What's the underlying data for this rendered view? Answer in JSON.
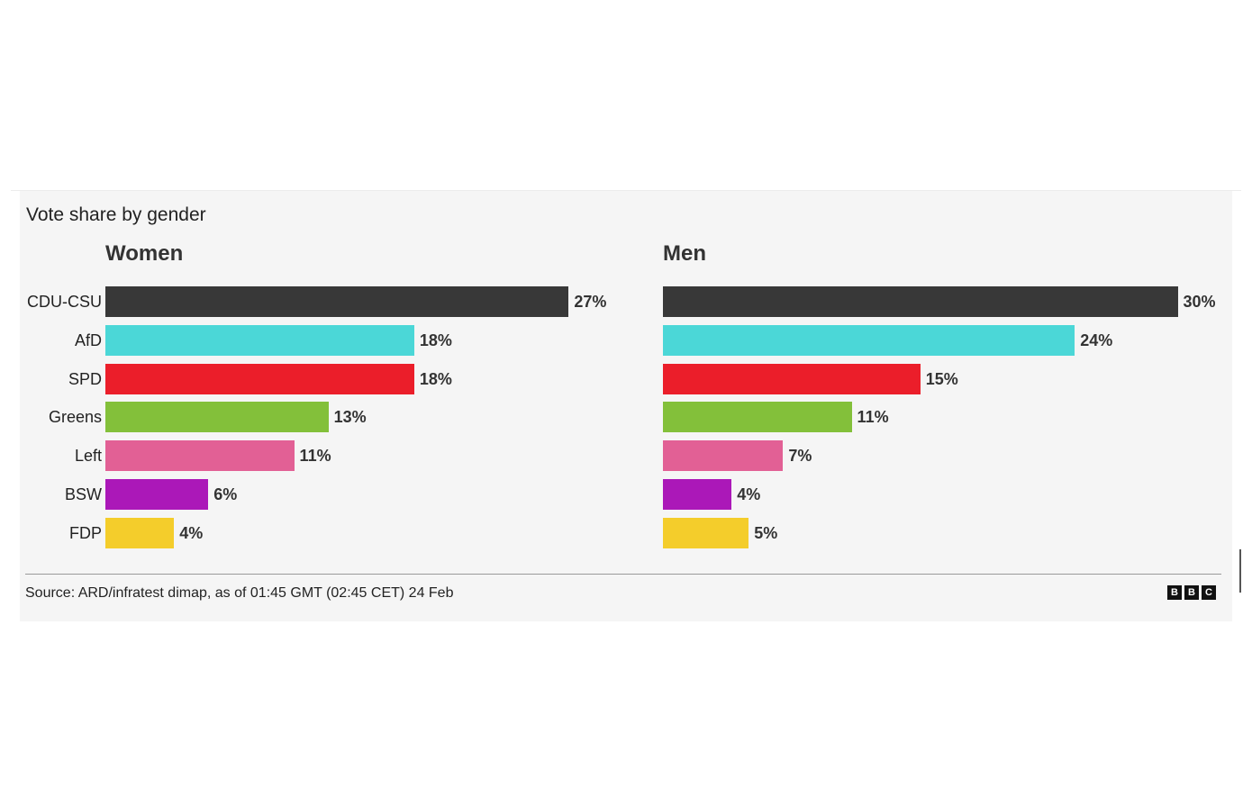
{
  "chart_data": {
    "type": "bar",
    "orientation": "horizontal",
    "title": "Vote share by gender",
    "categories": [
      "CDU-CSU",
      "AfD",
      "SPD",
      "Greens",
      "Left",
      "BSW",
      "FDP"
    ],
    "colors": [
      "#383838",
      "#4bd7d7",
      "#eb1e2a",
      "#83c03a",
      "#e26095",
      "#ab18b8",
      "#f4cd2b"
    ],
    "series": [
      {
        "name": "Women",
        "values": [
          27,
          18,
          18,
          13,
          11,
          6,
          4
        ],
        "labels": [
          "27%",
          "18%",
          "18%",
          "13%",
          "11%",
          "6%",
          "4%"
        ]
      },
      {
        "name": "Men",
        "values": [
          30,
          24,
          15,
          11,
          7,
          4,
          5
        ],
        "labels": [
          "30%",
          "24%",
          "15%",
          "11%",
          "7%",
          "4%",
          "5%"
        ]
      }
    ],
    "xlim": [
      0,
      30
    ],
    "unit": "%",
    "source": "Source: ARD/infratest dimap, as of 01:45 GMT (02:45 CET) 24 Feb"
  },
  "brand": {
    "logo_letters": [
      "B",
      "B",
      "C"
    ]
  }
}
